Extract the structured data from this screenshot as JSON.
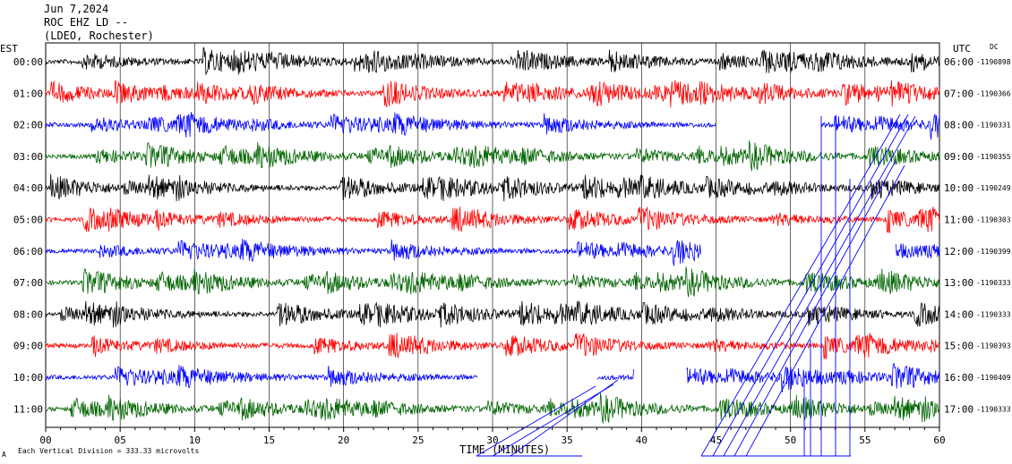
{
  "header": {
    "date": "Jun 7,2024",
    "station": "ROC EHZ LD --",
    "network": "(LDEO, Rochester)"
  },
  "labels": {
    "left_tz": "EST",
    "right_tz": "UTC",
    "dc": "DC",
    "footer_note": "Each Vertical Division =  333.33 microvolts",
    "footer_corner": "A"
  },
  "chart_data": {
    "type": "line",
    "title": "Jun 7,2024",
    "xlabel": "TIME (MINUTES)",
    "ylabel": "",
    "xlim": [
      0,
      60
    ],
    "x_ticks": [
      "00",
      "05",
      "10",
      "15",
      "20",
      "25",
      "30",
      "35",
      "40",
      "45",
      "50",
      "55",
      "60"
    ],
    "grid": true,
    "trace_colors": [
      "#000000",
      "#ff0000",
      "#0000ff",
      "#006400"
    ],
    "rows": [
      {
        "est": "00:00",
        "utc": "06:00",
        "dc": "-1190898",
        "color": "#000000",
        "gaps": []
      },
      {
        "est": "01:00",
        "utc": "07:00",
        "dc": "-1190366",
        "color": "#ff0000",
        "gaps": []
      },
      {
        "est": "02:00",
        "utc": "08:00",
        "dc": "-1190331",
        "color": "#0000ff",
        "gaps": [
          [
            45,
            52
          ]
        ]
      },
      {
        "est": "03:00",
        "utc": "09:00",
        "dc": "-1190355",
        "color": "#006400",
        "gaps": []
      },
      {
        "est": "04:00",
        "utc": "10:00",
        "dc": "-1190249",
        "color": "#000000",
        "gaps": []
      },
      {
        "est": "05:00",
        "utc": "11:00",
        "dc": "-1190303",
        "color": "#ff0000",
        "gaps": []
      },
      {
        "est": "06:00",
        "utc": "12:00",
        "dc": "-1190399",
        "color": "#0000ff",
        "gaps": [
          [
            44,
            57
          ]
        ]
      },
      {
        "est": "07:00",
        "utc": "13:00",
        "dc": "-1190333",
        "color": "#006400",
        "gaps": []
      },
      {
        "est": "08:00",
        "utc": "14:00",
        "dc": "-1190333",
        "color": "#000000",
        "gaps": []
      },
      {
        "est": "09:00",
        "utc": "15:00",
        "dc": "-1190393",
        "color": "#ff0000",
        "gaps": []
      },
      {
        "est": "10:00",
        "utc": "16:00",
        "dc": "-1190409",
        "color": "#0000ff",
        "gaps": [
          [
            29,
            37
          ],
          [
            39.5,
            43
          ]
        ]
      },
      {
        "est": "11:00",
        "utc": "17:00",
        "dc": "-1190333",
        "color": "#006400",
        "gaps": []
      }
    ]
  }
}
